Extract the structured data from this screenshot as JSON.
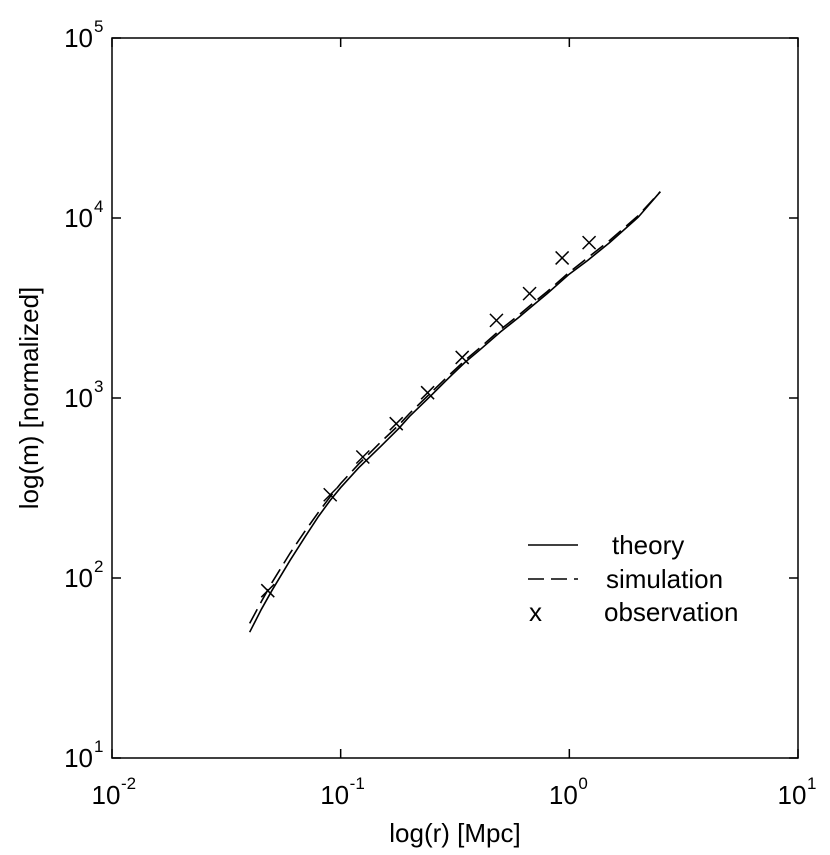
{
  "chart_data": {
    "type": "line",
    "xlabel": "log(r) [Mpc]",
    "ylabel": "log(m) [normalized]",
    "xscale": "log",
    "yscale": "log",
    "xlim": [
      0.01,
      10
    ],
    "ylim": [
      10,
      100000
    ],
    "xticks": [
      {
        "base": "10",
        "exp": "-2",
        "value": 0.01
      },
      {
        "base": "10",
        "exp": "-1",
        "value": 0.1
      },
      {
        "base": "10",
        "exp": "0",
        "value": 1
      },
      {
        "base": "10",
        "exp": "1",
        "value": 10
      }
    ],
    "yticks": [
      {
        "base": "10",
        "exp": "1",
        "value": 10
      },
      {
        "base": "10",
        "exp": "2",
        "value": 100
      },
      {
        "base": "10",
        "exp": "3",
        "value": 1000
      },
      {
        "base": "10",
        "exp": "4",
        "value": 10000
      },
      {
        "base": "10",
        "exp": "5",
        "value": 100000
      }
    ],
    "grid": false,
    "legend_position": "lower-right",
    "series": [
      {
        "name": "theory",
        "style": "solid",
        "marker": "",
        "x": [
          0.04,
          0.045,
          0.05,
          0.06,
          0.07,
          0.08,
          0.09,
          0.1,
          0.12,
          0.15,
          0.18,
          0.2,
          0.25,
          0.3,
          0.35,
          0.4,
          0.5,
          0.6,
          0.7,
          0.8,
          1.0,
          1.2,
          1.5,
          2.0,
          2.5
        ],
        "y": [
          50,
          67,
          85,
          125,
          170,
          220,
          270,
          318,
          410,
          540,
          680,
          790,
          1040,
          1310,
          1580,
          1820,
          2330,
          2800,
          3300,
          3800,
          4880,
          5800,
          7300,
          10100,
          14000
        ]
      },
      {
        "name": "simulation",
        "style": "dashed",
        "marker": "",
        "x": [
          0.04,
          0.045,
          0.05,
          0.06,
          0.07,
          0.08,
          0.09,
          0.1,
          0.12,
          0.15,
          0.18,
          0.2,
          0.25,
          0.3,
          0.35,
          0.4,
          0.5,
          0.6,
          0.7,
          0.8,
          1.0,
          1.2,
          1.5,
          2.0,
          2.5
        ],
        "y": [
          56,
          74,
          94,
          137,
          183,
          232,
          283,
          335,
          430,
          570,
          710,
          820,
          1080,
          1350,
          1620,
          1870,
          2400,
          2880,
          3400,
          3900,
          5000,
          6000,
          7500,
          10300,
          14000
        ]
      },
      {
        "name": "observation",
        "style": "none",
        "marker": "x",
        "legend_symbol": "x",
        "x": [
          0.048,
          0.09,
          0.125,
          0.175,
          0.24,
          0.34,
          0.48,
          0.67,
          0.93,
          1.22
        ],
        "y": [
          85,
          290,
          470,
          720,
          1070,
          1680,
          2700,
          3800,
          6000,
          7300
        ]
      }
    ]
  }
}
